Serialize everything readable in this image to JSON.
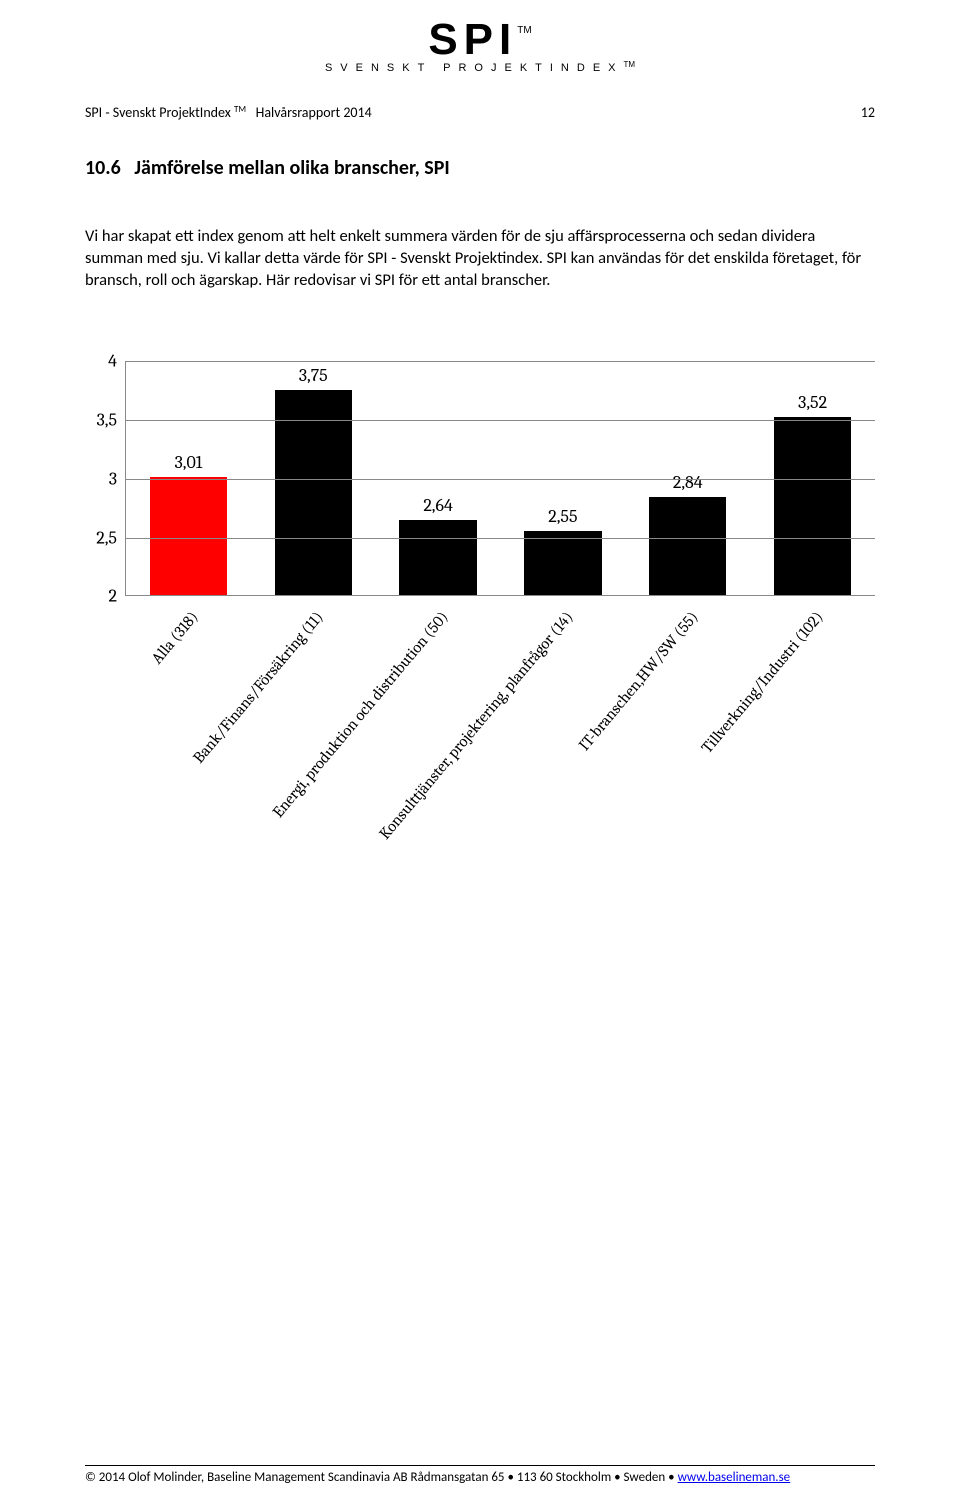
{
  "logo": {
    "main": "SPI",
    "sub": "SVENSKT PROJEKTINDEX",
    "tm": "TM"
  },
  "header": {
    "left_prefix": "SPI - Svenskt ProjektIndex",
    "left_tm": "TM",
    "left_suffix": "Halvårsrapport 2014",
    "page_num": "12"
  },
  "section": {
    "number": "10.6",
    "title": "Jämförelse mellan olika branscher, SPI"
  },
  "body": "Vi har skapat ett index genom att helt enkelt summera värden för de sju affärsprocesserna och sedan dividera summan med sju. Vi kallar detta värde för SPI - Svenskt Projektindex. SPI kan användas för det enskilda företaget, för bransch, roll och ägarskap. Här redovisar vi SPI för ett antal branscher.",
  "chart": {
    "type": "bar",
    "ylim": [
      2,
      4
    ],
    "ytick_step": 0.5,
    "y_ticks": [
      "4",
      "3,5",
      "3",
      "2,5",
      "2"
    ],
    "grid_color": "#888888",
    "background_color": "#ffffff",
    "label_fontsize": 18,
    "bar_width_pct": 62,
    "bars": [
      {
        "category": "Alla (318)",
        "value": 3.01,
        "label": "3,01",
        "color": "#ff0000"
      },
      {
        "category": "Bank/Finans/Försäkring (11)",
        "value": 3.75,
        "label": "3,75",
        "color": "#000000"
      },
      {
        "category": "Energi, produktion och distribution (50)",
        "value": 2.64,
        "label": "2,64",
        "color": "#000000"
      },
      {
        "category": "Konsulttjänster, projektering, planfrågor (14)",
        "value": 2.55,
        "label": "2,55",
        "color": "#000000"
      },
      {
        "category": "IT-branschen,HW/SW (55)",
        "value": 2.84,
        "label": "2,84",
        "color": "#000000"
      },
      {
        "category": "Tillverkning/Industri (102)",
        "value": 3.52,
        "label": "3,52",
        "color": "#000000"
      }
    ]
  },
  "footer": {
    "left": "© 2014  Olof Molinder, Baseline Management Scandinavia AB    Rådmansgatan 65 • 113 60 Stockholm • Sweden •",
    "link_text": "www.baselineman.se"
  }
}
